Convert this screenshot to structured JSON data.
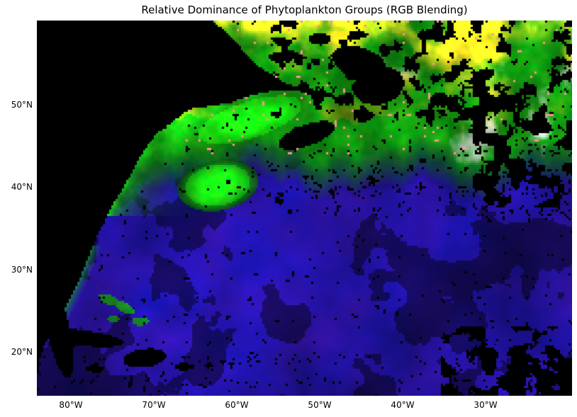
{
  "title": "Relative Dominance of Phytoplankton Groups (RGB Blending)",
  "axes": {
    "x_ticks": [
      "80°W",
      "70°W",
      "60°W",
      "50°W",
      "40°W",
      "30°W"
    ],
    "y_ticks": [
      "50°N",
      "40°N",
      "30°N",
      "20°N"
    ]
  },
  "chart_data": {
    "type": "heatmap",
    "subtype": "rgb-composite-satellite-map",
    "title": "Relative Dominance of Phytoplankton Groups (RGB Blending)",
    "xlabel": "",
    "ylabel": "",
    "x_tick_labels": [
      "80°W",
      "70°W",
      "60°W",
      "50°W",
      "40°W",
      "30°W"
    ],
    "y_tick_labels": [
      "50°N",
      "40°N",
      "30°N",
      "20°N"
    ],
    "extent": {
      "lon_west_deg_w": 84.1,
      "lon_east_deg_w": 19.6,
      "lat_north_deg_n": 60.2,
      "lat_south_deg_n": 14.7
    },
    "grid": false,
    "legend": false,
    "regions": [
      {
        "area": "subtropical gyre (southern and central basin)",
        "dominant_color": "#2316C8"
      },
      {
        "area": "dark eddies within gyre",
        "dominant_color": "#140D78"
      },
      {
        "area": "northern bloom waters (45N-60N)",
        "dominant_color": "#1ECB28"
      },
      {
        "area": "coastal shelf / Gulf of St Lawrence bloom",
        "dominant_color": "#35F04A"
      },
      {
        "area": "far-north streaks (top of scene)",
        "dominant_color": "#EE8A33"
      },
      {
        "area": "northeast patches (40W-25W, 45N-55N)",
        "dominant_color": "#D24FD6"
      },
      {
        "area": "pink specks in northern greens",
        "dominant_color": "#F5968C"
      },
      {
        "area": "land, clouds and missing data",
        "dominant_color": "#000000"
      }
    ]
  },
  "map_render": {
    "extent": {
      "lonW": 84.1,
      "lonE": 19.6,
      "latN": 60.2,
      "latS": 14.7
    },
    "palette": {
      "gyre_blue": "#2316C8",
      "bloom_green": "#1ECB28",
      "coastal_green": "#35F04A",
      "north_orange": "#EE8A33",
      "magenta": "#D24FD6",
      "salmon": "#F5968C",
      "background": "#000000"
    }
  }
}
